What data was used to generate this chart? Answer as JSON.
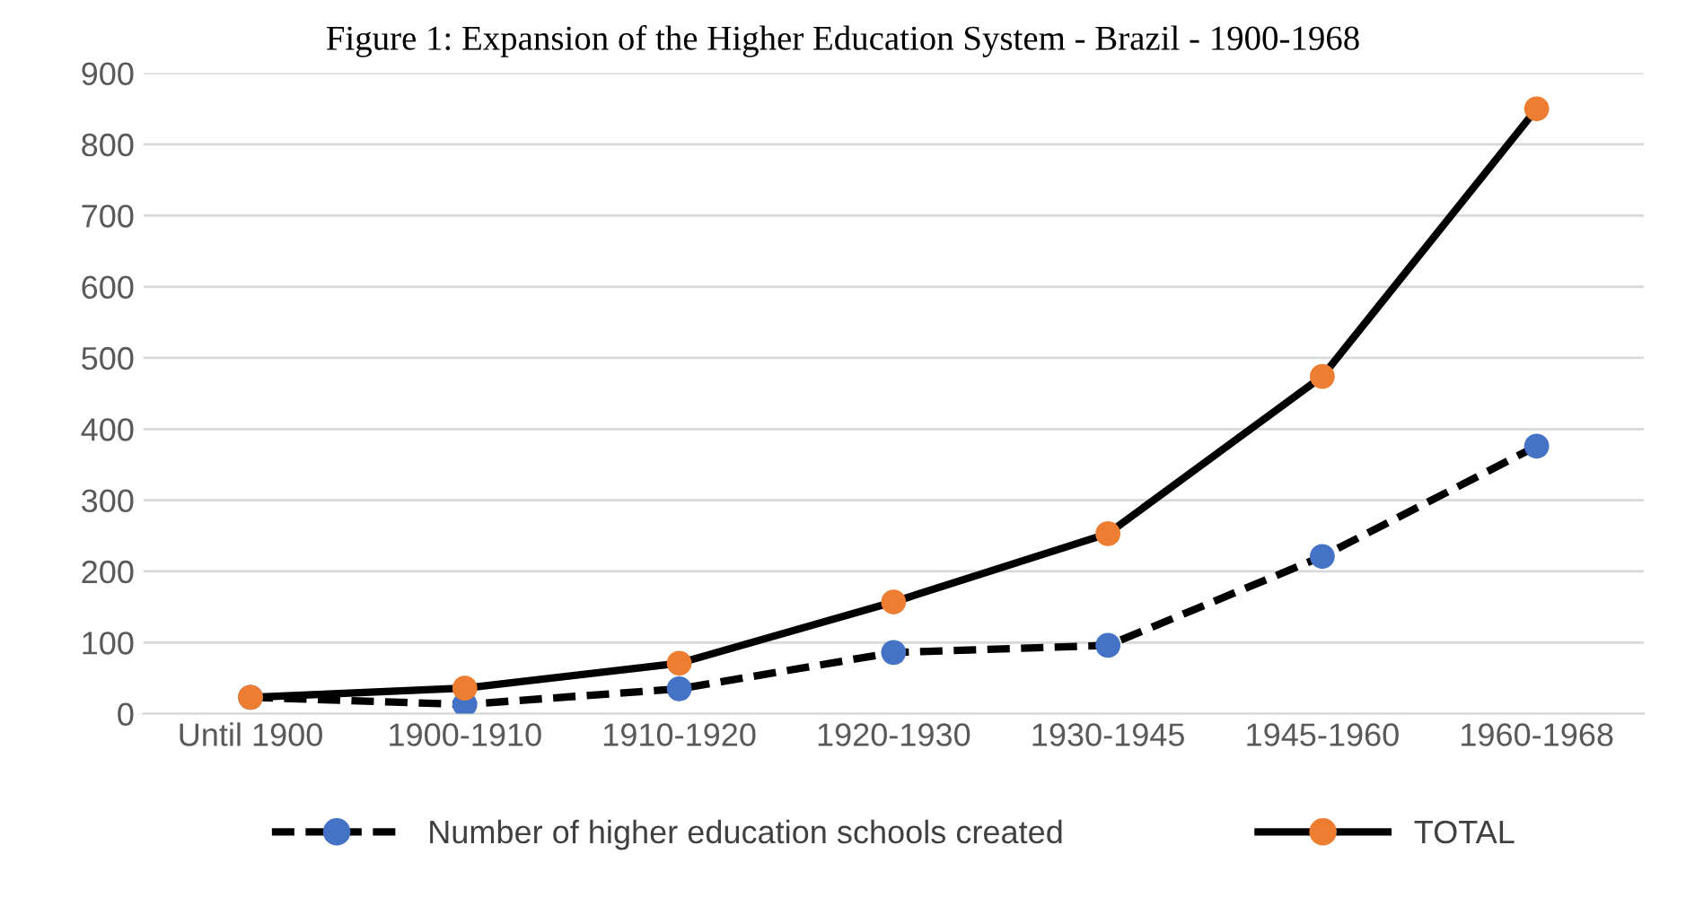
{
  "chart_data": {
    "type": "line",
    "title": "Figure 1: Expansion of the Higher Education System - Brazil - 1900-1968",
    "categories": [
      "Until 1900",
      "1900-1910",
      "1910-1920",
      "1920-1930",
      "1930-1945",
      "1945-1960",
      "1960-1968"
    ],
    "series": [
      {
        "name": "Number of higher education schools created",
        "color": "#000000",
        "colors": [
          "#4472c4",
          "#4472c4",
          "#4472c4",
          "#4472c4",
          "#4472c4",
          "#4472c4",
          "#4472c4"
        ],
        "line_style": "dashed",
        "values": [
          23,
          13,
          35,
          86,
          96,
          221,
          376
        ]
      },
      {
        "name": "TOTAL",
        "color": "#000000",
        "colors": [
          "#ed7d31",
          "#ed7d31",
          "#ed7d31",
          "#ed7d31",
          "#ed7d31",
          "#ed7d31",
          "#ed7d31"
        ],
        "line_style": "solid",
        "values": [
          23,
          36,
          71,
          157,
          253,
          474,
          850
        ]
      }
    ],
    "ylim": [
      0,
      900
    ],
    "yticks": [
      0,
      100,
      200,
      300,
      400,
      500,
      600,
      700,
      800,
      900
    ],
    "grid": "y",
    "legend": "bottom",
    "marker": "circle"
  }
}
